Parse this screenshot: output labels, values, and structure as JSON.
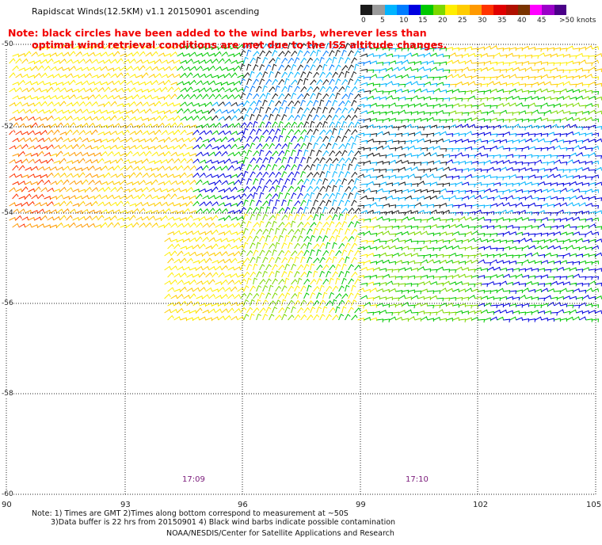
{
  "title": "Rapidscat Winds(12.5KM) v1.1 20150901 ascending",
  "note": {
    "line1": "Note: black circles have been added to the wind barbs, wherever less than",
    "line2": "optimal wind retrieval conditions are met due to the ISS altitude changes."
  },
  "colorbar": {
    "labels": [
      "0",
      "5",
      "10",
      "15",
      "20",
      "25",
      "30",
      "35",
      "40",
      "45",
      ">50 knots"
    ],
    "colors": [
      "#1a1a1a",
      "#9a9a9a",
      "#00b4ff",
      "#007cff",
      "#0000e0",
      "#00c800",
      "#7cd800",
      "#ffee00",
      "#ffcc00",
      "#ff9900",
      "#ff3300",
      "#e00000",
      "#b01000",
      "#7a3300",
      "#ff00ff",
      "#9a00c8",
      "#4a0088"
    ]
  },
  "lat_labels": [
    "-50",
    "-52",
    "-54",
    "-56",
    "-58",
    "-60"
  ],
  "lon_labels": [
    "90",
    "93",
    "96",
    "99",
    "102",
    "105"
  ],
  "times": [
    "17:09",
    "17:10"
  ],
  "footer": {
    "line1": "Note: 1) Times are GMT 2)Times along bottom correspond to measurement at ~50S",
    "line2": "3)Data buffer is 22 hrs from 20150901 4) Black wind barbs indicate possible contamination",
    "line3": "NOAA/NESDIS/Center for Satellite Applications and Research"
  }
}
